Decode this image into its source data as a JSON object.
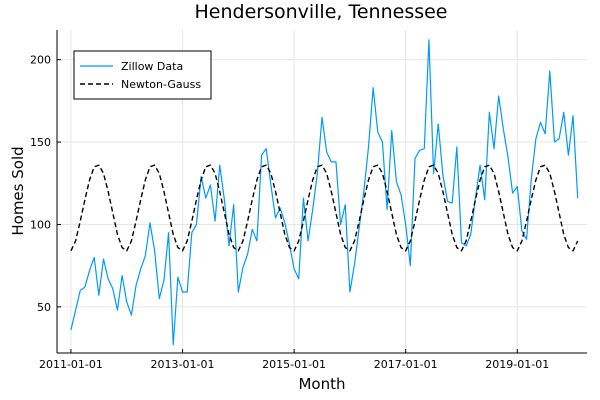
{
  "chart_data": {
    "type": "line",
    "title": "Hendersonville, Tennessee",
    "xlabel": "Month",
    "ylabel": "Homes Sold",
    "x_ticks": [
      "2011-01-01",
      "2013-01-01",
      "2015-01-01",
      "2017-01-01",
      "2019-01-01"
    ],
    "y_ticks": [
      50,
      100,
      150,
      200
    ],
    "xlim": [
      "2010-10-01",
      "2020-04-01"
    ],
    "ylim": [
      22,
      218
    ],
    "grid": true,
    "legend_position": "top-left",
    "series": [
      {
        "name": "Zillow Data",
        "color": "#009AFA",
        "style": "solid",
        "x_start": "2011-01-01",
        "frequency": "monthly",
        "values": [
          36,
          48,
          60,
          62,
          72,
          80,
          57,
          79,
          67,
          61,
          48,
          69,
          53,
          45,
          63,
          73,
          81,
          101,
          84,
          55,
          66,
          95,
          27,
          68,
          59,
          59,
          95,
          100,
          129,
          116,
          124,
          102,
          136,
          115,
          87,
          112,
          59,
          74,
          82,
          97,
          90,
          142,
          146,
          124,
          104,
          110,
          101,
          88,
          73,
          67,
          116,
          90,
          109,
          131,
          165,
          144,
          138,
          138,
          100,
          112,
          59,
          76,
          98,
          120,
          147,
          183,
          156,
          150,
          109,
          157,
          126,
          118,
          100,
          75,
          140,
          145,
          146,
          212,
          131,
          161,
          130,
          114,
          113,
          147,
          89,
          87,
          94,
          116,
          136,
          115,
          168,
          146,
          178,
          158,
          141,
          119,
          123,
          96,
          91,
          127,
          152,
          162,
          155,
          193,
          150,
          152,
          168,
          142,
          166,
          116
        ]
      },
      {
        "name": "Newton-Gauss",
        "color": "#000000",
        "style": "dashed",
        "x_start": "2011-01-01",
        "frequency": "monthly",
        "values": [
          84,
          90,
          102,
          115,
          127,
          135,
          136,
          131,
          120,
          107,
          94,
          86,
          84,
          90,
          102,
          115,
          127,
          135,
          136,
          131,
          120,
          107,
          94,
          86,
          84,
          90,
          102,
          115,
          127,
          135,
          136,
          131,
          120,
          107,
          94,
          86,
          84,
          90,
          102,
          115,
          127,
          135,
          136,
          131,
          120,
          107,
          94,
          86,
          84,
          90,
          102,
          115,
          127,
          135,
          136,
          131,
          120,
          107,
          94,
          86,
          84,
          90,
          102,
          115,
          127,
          135,
          136,
          131,
          120,
          107,
          94,
          86,
          84,
          90,
          102,
          115,
          127,
          135,
          136,
          131,
          120,
          107,
          94,
          86,
          84,
          90,
          102,
          115,
          127,
          135,
          136,
          131,
          120,
          107,
          94,
          86,
          84,
          90,
          102,
          115,
          127,
          135,
          136,
          131,
          120,
          107,
          94,
          86,
          84,
          90
        ]
      }
    ]
  }
}
